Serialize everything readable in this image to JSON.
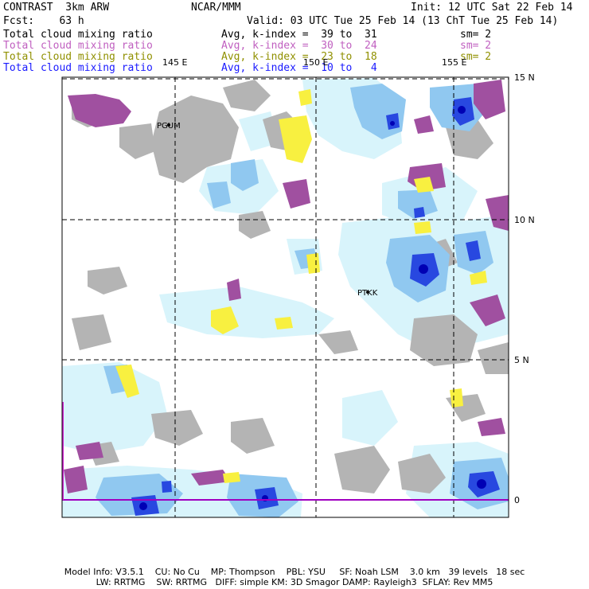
{
  "header": {
    "title": "CONTRAST  3km ARW",
    "center": "NCAR/MMM",
    "init": "Init: 12 UTC Sat 22 Feb 14",
    "fcst": "Fcst:    63 h",
    "valid": "Valid: 03 UTC Tue 25 Feb 14 (13 ChT Tue 25 Feb 14)"
  },
  "fields": [
    {
      "name": "Total cloud mixing ratio",
      "avg": "Avg, k-index =  39 to  31",
      "sm": "sm= 2",
      "color": "#000000"
    },
    {
      "name": "Total cloud mixing ratio",
      "avg": "Avg, k-index =  30 to  24",
      "sm": "sm= 2",
      "color": "#c060c0"
    },
    {
      "name": "Total cloud mixing ratio",
      "avg": "Avg, k-index =  23 to  18",
      "sm": "sm= 2",
      "color": "#909000"
    },
    {
      "name": "Total cloud mixing ratio",
      "avg": "Avg, k-index =  10 to   4",
      "sm": "",
      "color": "#1a1aff"
    }
  ],
  "axes": {
    "lon_labels": [
      "145 E",
      "150 E",
      "155 E"
    ],
    "lat_labels": [
      "15 N",
      "10 N",
      "5 N",
      "0"
    ]
  },
  "stations": [
    "PGUM",
    "PTKK"
  ],
  "footer": {
    "line1": "Model Info: V3.5.1    CU: No Cu    MP: Thompson    PBL: YSU     SF: Noah LSM    3.0 km   39 levels   18 sec",
    "line2": "LW: RRTMG    SW: RRTMG   DIFF: simple KM: 3D Smagor DAMP: Rayleigh3  SFLAY: Rev MM5"
  }
}
